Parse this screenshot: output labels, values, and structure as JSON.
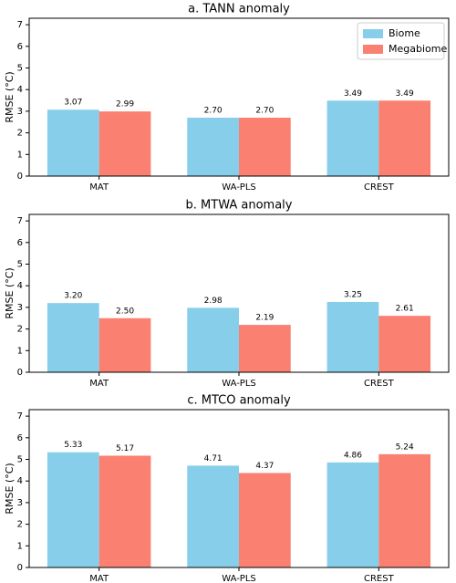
{
  "chart_data": [
    {
      "type": "bar",
      "title": "a. TANN anomaly",
      "y_label": "RMSE (°C)",
      "categories": [
        "MAT",
        "WA-PLS",
        "CREST"
      ],
      "series": [
        {
          "name": "Biome",
          "color": "#87ceeb",
          "values": [
            3.07,
            2.7,
            3.49
          ],
          "value_labels": [
            "3.07",
            "2.70",
            "3.49"
          ]
        },
        {
          "name": "Megabiome",
          "color": "#fa8072",
          "values": [
            2.99,
            2.7,
            3.49
          ],
          "value_labels": [
            "2.99",
            "2.70",
            "3.49"
          ]
        }
      ],
      "ylim": [
        0,
        7.3
      ],
      "yticks": [
        0,
        1,
        2,
        3,
        4,
        5,
        6,
        7
      ],
      "legend": "upper right"
    },
    {
      "type": "bar",
      "title": "b. MTWA anomaly",
      "y_label": "RMSE (°C)",
      "categories": [
        "MAT",
        "WA-PLS",
        "CREST"
      ],
      "series": [
        {
          "color": "#87ceeb",
          "values": [
            3.2,
            2.98,
            3.25
          ],
          "value_labels": [
            "3.20",
            "2.98",
            "3.25"
          ]
        },
        {
          "color": "#fa8072",
          "values": [
            2.5,
            2.19,
            2.61
          ],
          "value_labels": [
            "2.50",
            "2.19",
            "2.61"
          ]
        }
      ],
      "ylim": [
        0,
        7.3
      ],
      "yticks": [
        0,
        1,
        2,
        3,
        4,
        5,
        6,
        7
      ]
    },
    {
      "type": "bar",
      "title": "c. MTCO anomaly",
      "y_label": "RMSE (°C)",
      "categories": [
        "MAT",
        "WA-PLS",
        "CREST"
      ],
      "series": [
        {
          "color": "#87ceeb",
          "values": [
            5.33,
            4.71,
            4.86
          ],
          "value_labels": [
            "5.33",
            "4.71",
            "4.86"
          ]
        },
        {
          "color": "#fa8072",
          "values": [
            5.17,
            4.37,
            5.24
          ],
          "value_labels": [
            "5.17",
            "4.37",
            "5.24"
          ]
        }
      ],
      "ylim": [
        0,
        7.3
      ],
      "yticks": [
        0,
        1,
        2,
        3,
        4,
        5,
        6,
        7
      ]
    }
  ]
}
